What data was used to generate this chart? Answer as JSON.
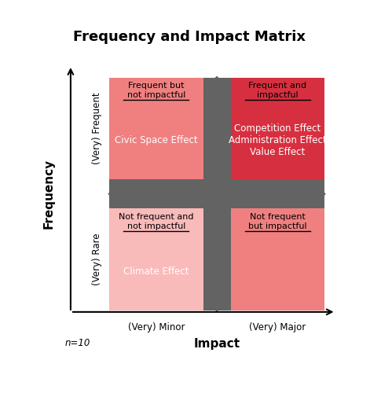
{
  "title": "Frequency and Impact Matrix",
  "title_fontsize": 13,
  "xlabel": "Impact",
  "ylabel": "Frequency",
  "n_label": "n=10",
  "quadrant_colors": {
    "top_left": "#F08080",
    "top_right": "#D63040",
    "bottom_left": "#F9BABA",
    "bottom_right": "#F08080"
  },
  "quadrant_labels": {
    "top_left_header": "Frequent but\nnot impactful",
    "top_right_header": "Frequent and\nimpactful",
    "bottom_left_header": "Not frequent and\nnot impactful",
    "bottom_right_header": "Not frequent\nbut impactful"
  },
  "quadrant_effects": {
    "top_left": "Civic Space Effect",
    "top_right": "Competition Effect\nAdministration Effect\nValue Effect",
    "bottom_left": "Climate Effect",
    "bottom_right": ""
  },
  "axis_labels": {
    "x_left": "(Very) Minor",
    "x_right": "(Very) Major",
    "y_bottom": "(Very) Rare",
    "y_top": "(Very) Frequent"
  },
  "arrow_color": "#636363",
  "background_color": "#ffffff"
}
